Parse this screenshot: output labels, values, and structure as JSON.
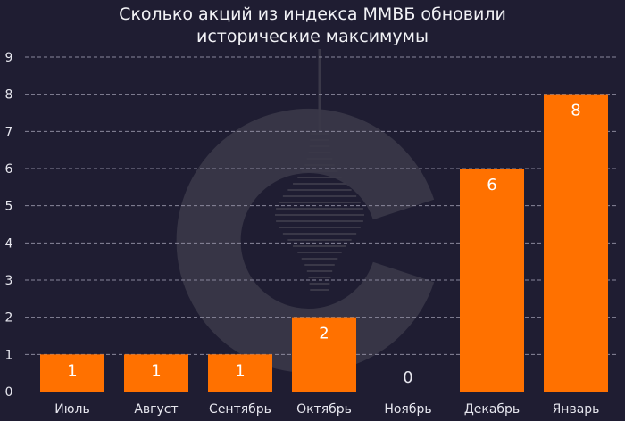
{
  "chart_data": {
    "type": "bar",
    "title_lines": [
      "Сколько акций из индекса ММВБ обновили",
      "исторические максимумы"
    ],
    "categories": [
      "Июль",
      "Август",
      "Сентябрь",
      "Октябрь",
      "Ноябрь",
      "Декабрь",
      "Январь"
    ],
    "values": [
      1,
      1,
      1,
      2,
      0,
      6,
      8
    ],
    "data_labels": [
      "1",
      "1",
      "1",
      "2",
      "0",
      "6",
      "8"
    ],
    "y_ticks": [
      "0",
      "1",
      "2",
      "3",
      "4",
      "5",
      "6",
      "7",
      "8",
      "9"
    ],
    "ylim": [
      0,
      9
    ],
    "grid": true,
    "legend": "none"
  },
  "colors": {
    "background": "#1f1d32",
    "bar": "#ff7100",
    "grid": "#8a889c",
    "text": "#e6e6ee",
    "data_label_on_bar": "#ffffff",
    "watermark": "#3a3848"
  },
  "watermark_icon": "c-logo-watermark"
}
